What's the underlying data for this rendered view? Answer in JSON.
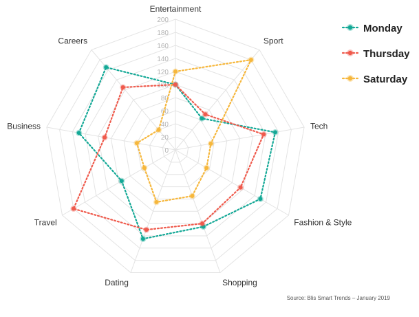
{
  "chart_data": {
    "type": "radar",
    "categories": [
      "Entertainment",
      "Sport",
      "Tech",
      "Fashion & Style",
      "Shopping",
      "Dating",
      "Travel",
      "Business",
      "Careers"
    ],
    "ticks": [
      "0",
      "20",
      "40",
      "60",
      "80",
      "100",
      "120",
      "140",
      "160",
      "180",
      "200"
    ],
    "rmax": 200,
    "series": [
      {
        "name": "Monday",
        "color": "#13a896",
        "values": [
          100,
          63,
          155,
          150,
          125,
          145,
          95,
          150,
          165
        ]
      },
      {
        "name": "Thursday",
        "color": "#ef5a4c",
        "values": [
          100,
          71,
          137,
          115,
          120,
          130,
          180,
          110,
          125
        ]
      },
      {
        "name": "Saturday",
        "color": "#f6b73c",
        "values": [
          120,
          180,
          55,
          55,
          75,
          85,
          55,
          60,
          40
        ]
      }
    ],
    "legend_position": "top-right",
    "grid": true
  },
  "source_note": "Source: Blis Smart Trends – January 2019"
}
